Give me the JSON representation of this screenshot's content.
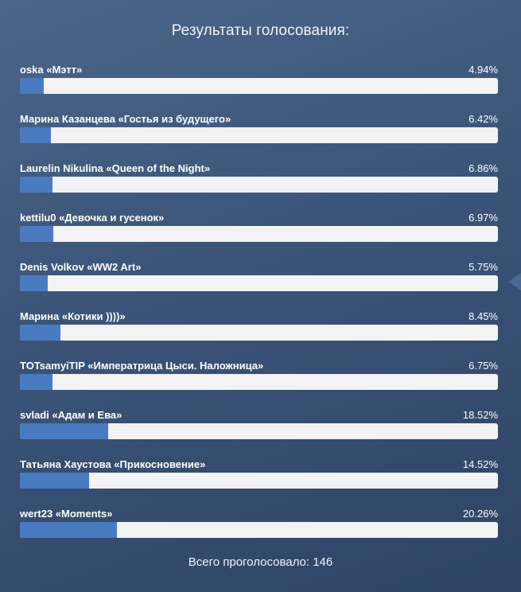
{
  "poll": {
    "title": "Результаты голосования:",
    "total_text": "Всего проголосовало: 146",
    "results": [
      {
        "label": "oska «Мэтт»",
        "percent_text": "4.94%",
        "percent": 4.94
      },
      {
        "label": "Марина Казанцева «Гостья из будущего»",
        "percent_text": "6.42%",
        "percent": 6.42
      },
      {
        "label": "Laurelin Nikulina «Queen of the Night»",
        "percent_text": "6.86%",
        "percent": 6.86
      },
      {
        "label": "kettilu0 «Девочка и гусенок»",
        "percent_text": "6.97%",
        "percent": 6.97
      },
      {
        "label": "Denis Volkov «WW2 Art»",
        "percent_text": "5.75%",
        "percent": 5.75
      },
      {
        "label": "Марина «Котики ))))»",
        "percent_text": "8.45%",
        "percent": 8.45
      },
      {
        "label": "TOTsamyiTIP «Императрица Цыси. Наложница»",
        "percent_text": "6.75%",
        "percent": 6.75
      },
      {
        "label": "svladi «Адам и Ева»",
        "percent_text": "18.52%",
        "percent": 18.52
      },
      {
        "label": "Татьяна Хаустова «Прикосновение»",
        "percent_text": "14.52%",
        "percent": 14.52
      },
      {
        "label": "wert23 «Moments»",
        "percent_text": "20.26%",
        "percent": 20.26
      }
    ]
  },
  "colors": {
    "bar_fill": "#4a7bc0",
    "bar_track": "#f3f3f5",
    "background": "#3b5478"
  },
  "icons": {
    "side_arrow": "left-arrow-icon"
  }
}
